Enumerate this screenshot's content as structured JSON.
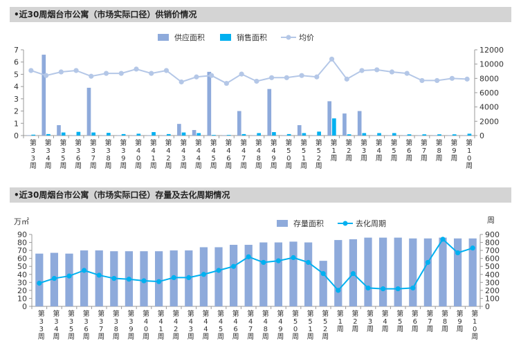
{
  "chart_data": [
    {
      "type": "bar",
      "title": "•近30周烟台市公寓（市场实际口径）供销价情况",
      "categories": [
        "第33周",
        "第34周",
        "第35周",
        "第36周",
        "第37周",
        "第38周",
        "第39周",
        "第40周",
        "第41周",
        "第42周",
        "第43周",
        "第44周",
        "第45周",
        "第46周",
        "第47周",
        "第48周",
        "第49周",
        "第50周",
        "第51周",
        "第52周",
        "第1周",
        "第2周",
        "第3周",
        "第4周",
        "第5周",
        "第6周",
        "第7周",
        "第8周",
        "第9周",
        "第10周"
      ],
      "series": [
        {
          "name": "供应面积",
          "type": "bar",
          "axis": "left",
          "color": "#8eaadb",
          "values": [
            0.03,
            6.6,
            0.85,
            0.03,
            3.9,
            0.03,
            0.03,
            0.03,
            0.03,
            0.03,
            0.95,
            0.45,
            5.2,
            0.03,
            2.0,
            0.03,
            3.8,
            0.03,
            0.85,
            0.03,
            2.8,
            1.8,
            2.0,
            0.03,
            0.03,
            0.03,
            0.03,
            0.03,
            0.03,
            0.03
          ]
        },
        {
          "name": "销售面积",
          "type": "bar",
          "axis": "left",
          "color": "#00b0f0",
          "values": [
            0.07,
            0.12,
            0.25,
            0.3,
            0.25,
            0.22,
            0.12,
            0.15,
            0.28,
            0.12,
            0.25,
            0.2,
            0.05,
            0.05,
            0.12,
            0.2,
            0.28,
            0.12,
            0.2,
            0.32,
            1.4,
            0.1,
            0.2,
            0.2,
            0.2,
            0.1,
            0.1,
            0.1,
            0.1,
            0.15
          ]
        },
        {
          "name": "均价",
          "type": "line",
          "axis": "right",
          "color": "#b4c7e7",
          "values": [
            9100,
            8400,
            8900,
            9100,
            8300,
            8700,
            8700,
            9300,
            8700,
            9100,
            7500,
            8200,
            8400,
            7300,
            8600,
            7600,
            8100,
            8100,
            8400,
            8200,
            10700,
            7900,
            9100,
            9200,
            8900,
            8700,
            7700,
            7700,
            8000,
            7900
          ]
        }
      ],
      "ylim": [
        0,
        7
      ],
      "yticks": [
        0,
        1,
        2,
        3,
        4,
        5,
        6,
        7
      ],
      "y2lim": [
        0,
        12000
      ],
      "y2ticks": [
        0,
        2000,
        4000,
        6000,
        8000,
        10000,
        12000
      ],
      "legend": "top-center"
    },
    {
      "type": "bar",
      "title": "•近30周烟台市公寓（市场实际口径）存量及去化周期情况",
      "ylabel": "万㎡",
      "y2label": "周",
      "categories": [
        "第33周",
        "第34周",
        "第35周",
        "第36周",
        "第37周",
        "第38周",
        "第39周",
        "第40周",
        "第41周",
        "第42周",
        "第43周",
        "第44周",
        "第45周",
        "第46周",
        "第47周",
        "第48周",
        "第49周",
        "第50周",
        "第51周",
        "第52周",
        "第1周",
        "第2周",
        "第3周",
        "第4周",
        "第5周",
        "第6周",
        "第7周",
        "第8周",
        "第9周",
        "第10周"
      ],
      "series": [
        {
          "name": "存量面积",
          "type": "bar",
          "axis": "left",
          "color": "#8eaadb",
          "values": [
            66,
            67,
            66,
            70,
            70,
            69,
            69,
            69,
            69,
            70,
            70,
            74,
            74,
            77,
            77,
            80,
            80,
            81,
            80,
            57,
            83,
            84,
            86,
            86,
            86,
            85,
            85,
            86,
            85,
            85
          ]
        },
        {
          "name": "去化周期",
          "type": "line",
          "axis": "right",
          "color": "#00b0f0",
          "values": [
            290,
            350,
            380,
            450,
            390,
            350,
            340,
            320,
            310,
            360,
            360,
            400,
            450,
            500,
            620,
            550,
            570,
            610,
            550,
            410,
            200,
            410,
            230,
            220,
            220,
            230,
            550,
            840,
            670,
            730
          ]
        }
      ],
      "ylim": [
        0,
        90
      ],
      "yticks": [
        0,
        10,
        20,
        30,
        40,
        50,
        60,
        70,
        80,
        90
      ],
      "y2lim": [
        0,
        900
      ],
      "y2ticks": [
        0,
        100,
        200,
        300,
        400,
        500,
        600,
        700,
        800,
        900
      ],
      "legend": "top-center"
    }
  ]
}
